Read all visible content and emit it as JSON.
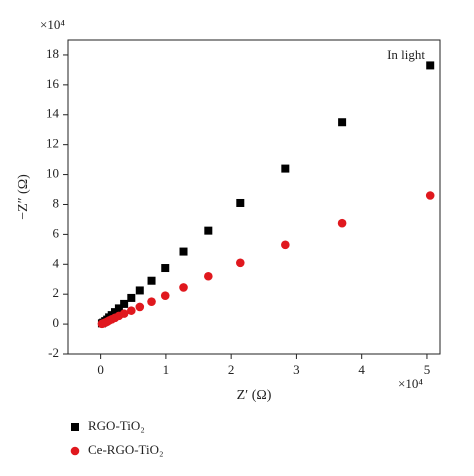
{
  "chart_data": {
    "type": "scatter",
    "x_label": "Z′ (Ω)",
    "y_label": "−Z″ (Ω)",
    "x_multiplier": "×10⁴",
    "y_multiplier": "×10⁴",
    "annotation": "In light",
    "xlim": [
      -0.5,
      5.2
    ],
    "ylim": [
      -2,
      19
    ],
    "xticks": [
      0,
      1,
      2,
      3,
      4,
      5
    ],
    "yticks": [
      -2,
      0,
      2,
      4,
      6,
      8,
      10,
      12,
      14,
      16,
      18
    ],
    "legend": "bottom-left",
    "series": [
      {
        "name": "RGO-TiO₂",
        "color": "#000000",
        "marker": "square",
        "x": [
          5.05,
          3.7,
          2.83,
          2.14,
          1.65,
          1.27,
          0.99,
          0.78,
          0.6,
          0.47,
          0.36,
          0.28,
          0.22,
          0.17,
          0.13,
          0.1,
          0.07,
          0.04,
          0.02
        ],
        "values": [
          17.3,
          13.5,
          10.4,
          8.1,
          6.25,
          4.85,
          3.75,
          2.9,
          2.25,
          1.75,
          1.35,
          1.05,
          0.8,
          0.6,
          0.45,
          0.3,
          0.2,
          0.1,
          0.05
        ]
      },
      {
        "name": "Ce-RGO-TiO₂",
        "color": "#e0181e",
        "marker": "circle",
        "x": [
          5.05,
          3.7,
          2.83,
          2.14,
          1.65,
          1.27,
          0.99,
          0.78,
          0.6,
          0.47,
          0.36,
          0.28,
          0.22,
          0.17,
          0.13,
          0.1,
          0.07,
          0.04,
          0.02
        ],
        "values": [
          8.6,
          6.75,
          5.3,
          4.1,
          3.2,
          2.45,
          1.9,
          1.5,
          1.15,
          0.9,
          0.7,
          0.55,
          0.42,
          0.32,
          0.24,
          0.16,
          0.1,
          0.05,
          0.02
        ]
      }
    ]
  }
}
